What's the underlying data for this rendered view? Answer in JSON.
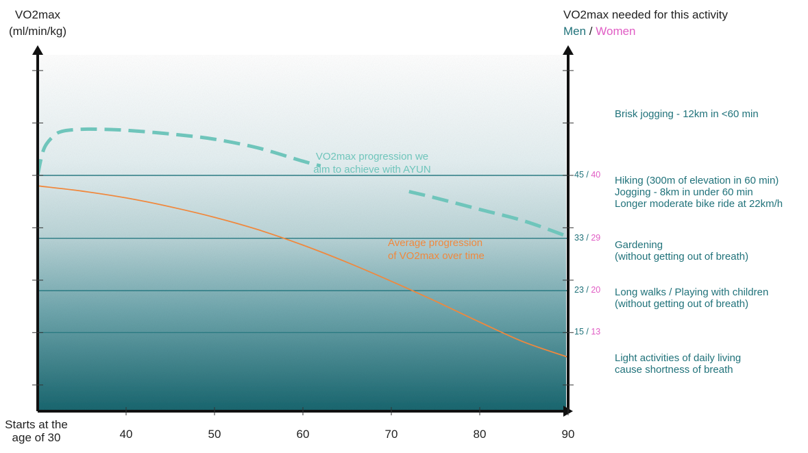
{
  "chart_data": {
    "type": "line",
    "y_axis_title": [
      "VO2max",
      "(ml/min/kg)"
    ],
    "right_axis_title": "VO2max needed for this activity",
    "legend": {
      "men": "Men",
      "separator": " / ",
      "women": "Women",
      "men_color": "#20727a",
      "women_color": "#e05cc4"
    },
    "x_start_label": [
      "Starts at the",
      "age of 30"
    ],
    "x_ticks": [
      40,
      50,
      60,
      70,
      80,
      90
    ],
    "x_range": [
      30,
      90
    ],
    "y_range": [
      0,
      68
    ],
    "thresholds": [
      {
        "men": 45,
        "women": 40
      },
      {
        "men": 33,
        "women": 29
      },
      {
        "men": 23,
        "women": 20
      },
      {
        "men": 15,
        "women": 13
      }
    ],
    "activities": [
      {
        "lines": [
          "Brisk jogging - 12km in <60 min"
        ]
      },
      {
        "lines": [
          "Hiking (300m of elevation in 60 min)",
          "Jogging - 8km in under 60 min",
          "Longer moderate bike ride at 22km/h"
        ]
      },
      {
        "lines": [
          "Gardening",
          "(without getting out of breath)"
        ]
      },
      {
        "lines": [
          "Long walks / Playing with children",
          "(without getting out of breath)"
        ]
      },
      {
        "lines": [
          "Light activities of daily living",
          "cause shortness of breath"
        ]
      }
    ],
    "series": [
      {
        "label": [
          "VO2max progression we",
          "aim to achieve with AYUN"
        ],
        "color": "#6fc5bb",
        "style": "dashed",
        "x": [
          30,
          30.5,
          31,
          32,
          33,
          35,
          37,
          40,
          45,
          50,
          55,
          60,
          62,
          72,
          75,
          80,
          85,
          90
        ],
        "y": [
          45,
          49,
          51,
          52.8,
          53.5,
          53.8,
          53.8,
          53.6,
          52.9,
          51.9,
          50.2,
          47.7,
          46.8,
          41.9,
          40.7,
          38.5,
          36.3,
          33.3
        ]
      },
      {
        "label": [
          "Average progression",
          "of VO2max over time"
        ],
        "color": "#f0883d",
        "style": "solid",
        "x": [
          30,
          35,
          40,
          45,
          50,
          55,
          60,
          65,
          70,
          75,
          80,
          85,
          90
        ],
        "y": [
          43,
          42,
          40.7,
          39,
          37,
          34.6,
          31.7,
          28.4,
          24.8,
          21,
          17,
          13.2,
          10.3
        ]
      }
    ]
  }
}
